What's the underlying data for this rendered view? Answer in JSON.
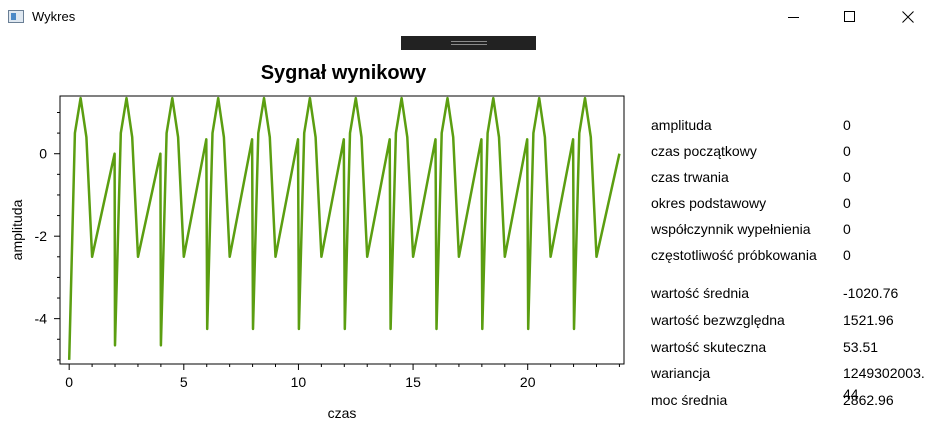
{
  "window": {
    "title": "Wykres"
  },
  "chart_data": {
    "type": "line",
    "title": "Sygnał wynikowy",
    "xlabel": "czas",
    "ylabel": "amplituda",
    "xlim": [
      -0.4,
      24.2
    ],
    "ylim": [
      -5.1,
      1.4
    ],
    "xticks": [
      0,
      5,
      10,
      15,
      20
    ],
    "yticks": [
      -4,
      -2,
      0
    ],
    "color": "#5b9e11",
    "series": [
      {
        "x": [
          0,
          0.25,
          0.5,
          0.75,
          1.0,
          1.98,
          2.0,
          2.25,
          2.5,
          2.75,
          3.0,
          3.98,
          4.0,
          4.25,
          4.5,
          4.75,
          5.0,
          5.98,
          6.02,
          6.02,
          6.25,
          6.5,
          6.75,
          7.0,
          7.98,
          8.02,
          8.02,
          8.25,
          8.5,
          8.75,
          9.0,
          9.98,
          10.02,
          10.02,
          10.25,
          10.5,
          10.75,
          11.0,
          11.98,
          12.02,
          12.02,
          12.25,
          12.5,
          12.75,
          13.0,
          13.98,
          14.02,
          14.02,
          14.25,
          14.5,
          14.75,
          15.0,
          15.98,
          16.02,
          16.02,
          16.25,
          16.5,
          16.75,
          17.0,
          17.98,
          18.02,
          18.02,
          18.25,
          18.5,
          18.75,
          19.0,
          19.98,
          20.02,
          20.02,
          20.25,
          20.5,
          20.75,
          21.0,
          21.98,
          22.02,
          22.02,
          22.25,
          22.5,
          22.75,
          23.0,
          24.0
        ],
        "y": [
          -5.0,
          0.5,
          1.35,
          0.4,
          -2.5,
          0.0,
          -4.65,
          0.5,
          1.35,
          0.4,
          -2.5,
          0.0,
          -4.65,
          0.5,
          1.35,
          0.4,
          -2.5,
          0.35,
          -4.25,
          -4.25,
          0.5,
          1.35,
          0.4,
          -2.5,
          0.35,
          -4.25,
          -4.25,
          0.5,
          1.35,
          0.4,
          -2.5,
          0.35,
          -4.25,
          -4.25,
          0.5,
          1.35,
          0.4,
          -2.5,
          0.35,
          -4.25,
          -4.25,
          0.5,
          1.35,
          0.4,
          -2.5,
          0.35,
          -4.25,
          -4.25,
          0.5,
          1.35,
          0.4,
          -2.5,
          0.35,
          -4.25,
          -4.25,
          0.5,
          1.35,
          0.4,
          -2.5,
          0.35,
          -4.25,
          -4.25,
          0.5,
          1.35,
          0.4,
          -2.5,
          0.35,
          -4.25,
          -4.25,
          0.5,
          1.35,
          0.4,
          -2.5,
          0.35,
          -4.25,
          -4.25,
          0.5,
          1.35,
          0.4,
          -2.5,
          0.0
        ]
      }
    ],
    "grid": false
  },
  "params": [
    {
      "label": "amplituda",
      "value": "0"
    },
    {
      "label": "czas początkowy",
      "value": "0"
    },
    {
      "label": "czas trwania",
      "value": "0"
    },
    {
      "label": "okres podstawowy",
      "value": "0"
    },
    {
      "label": "współczynnik wypełnienia",
      "value": "0"
    },
    {
      "label": "częstotliwość próbkowania",
      "value": "0"
    }
  ],
  "results": [
    {
      "label": "wartość średnia",
      "value": "-1020.76"
    },
    {
      "label": "wartość bezwzględna",
      "value": "1521.96"
    },
    {
      "label": "wartość skuteczna",
      "value": "53.51"
    },
    {
      "label": "wariancja",
      "value": "1249302003.44"
    },
    {
      "label": "moc średnia",
      "value": "2862.96"
    }
  ]
}
